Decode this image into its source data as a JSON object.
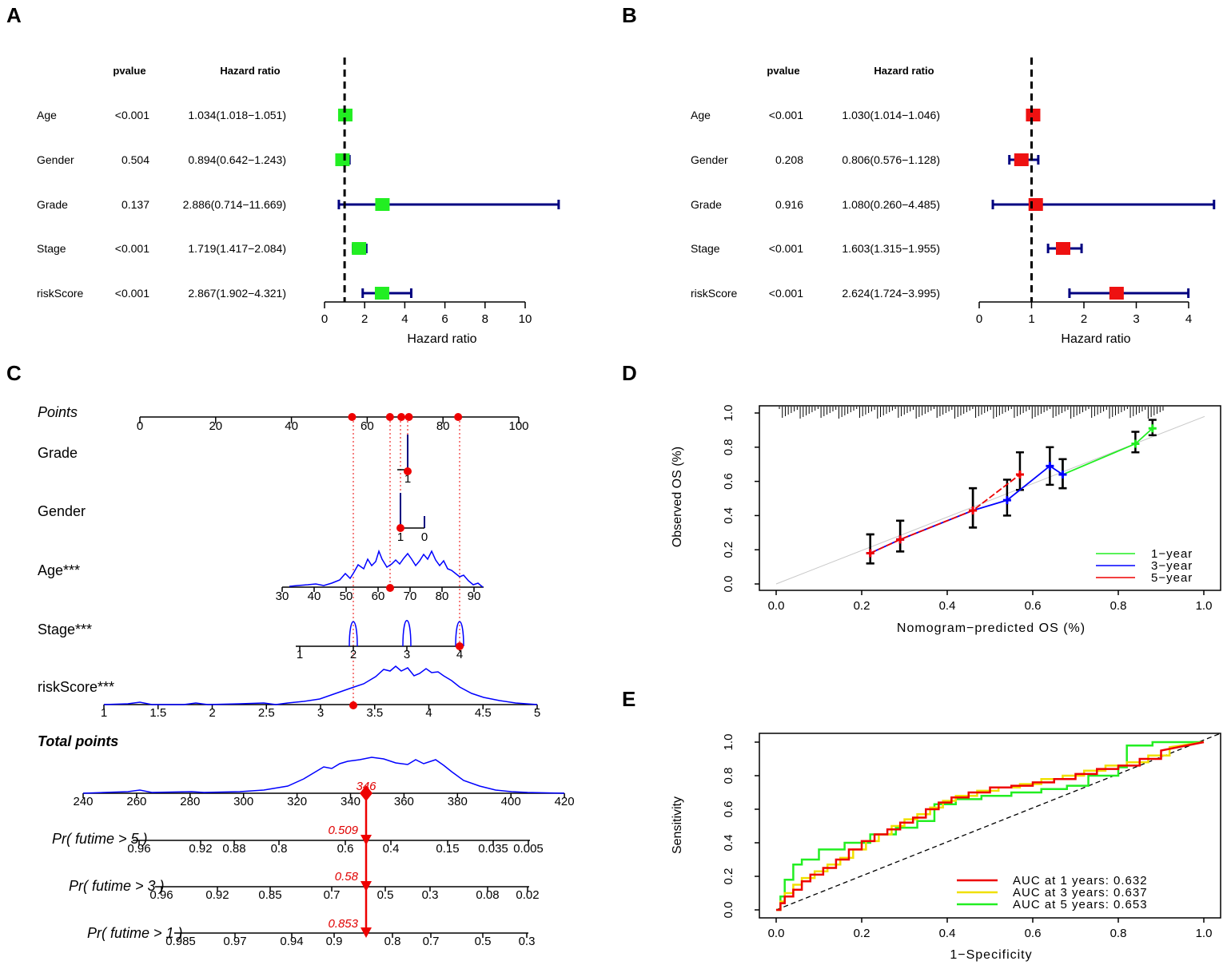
{
  "colors": {
    "green": "#22ee22",
    "red": "#ee1111",
    "navy": "#000080",
    "blue": "#0000ff",
    "nom_red": "#ee0000",
    "yellow": "#f0e000"
  },
  "panel_labels": {
    "a": "A",
    "b": "B",
    "c": "C",
    "d": "D",
    "e": "E"
  },
  "forest_a": {
    "header_pvalue": "pvalue",
    "header_hr": "Hazard ratio",
    "xlabel": "Hazard ratio",
    "rows": [
      {
        "name": "Age",
        "pvalue": "<0.001",
        "hr_text": "1.034(1.018−1.051)",
        "hr": 1.034,
        "lo": 1.018,
        "hi": 1.051
      },
      {
        "name": "Gender",
        "pvalue": "0.504",
        "hr_text": "0.894(0.642−1.243)",
        "hr": 0.894,
        "lo": 0.642,
        "hi": 1.243
      },
      {
        "name": "Grade",
        "pvalue": "0.137",
        "hr_text": "2.886(0.714−11.669)",
        "hr": 2.886,
        "lo": 0.714,
        "hi": 11.669
      },
      {
        "name": "Stage",
        "pvalue": "<0.001",
        "hr_text": "1.719(1.417−2.084)",
        "hr": 1.719,
        "lo": 1.417,
        "hi": 2.084
      },
      {
        "name": "riskScore",
        "pvalue": "<0.001",
        "hr_text": "2.867(1.902−4.321)",
        "hr": 2.867,
        "lo": 1.902,
        "hi": 4.321
      }
    ],
    "ticks": [
      "0",
      "2",
      "4",
      "6",
      "8",
      "10"
    ],
    "xlim": [
      0,
      10
    ]
  },
  "forest_b": {
    "header_pvalue": "pvalue",
    "header_hr": "Hazard ratio",
    "xlabel": "Hazard ratio",
    "rows": [
      {
        "name": "Age",
        "pvalue": "<0.001",
        "hr_text": "1.030(1.014−1.046)",
        "hr": 1.03,
        "lo": 1.014,
        "hi": 1.046
      },
      {
        "name": "Gender",
        "pvalue": "0.208",
        "hr_text": "0.806(0.576−1.128)",
        "hr": 0.806,
        "lo": 0.576,
        "hi": 1.128
      },
      {
        "name": "Grade",
        "pvalue": "0.916",
        "hr_text": "1.080(0.260−4.485)",
        "hr": 1.08,
        "lo": 0.26,
        "hi": 4.485
      },
      {
        "name": "Stage",
        "pvalue": "<0.001",
        "hr_text": "1.603(1.315−1.955)",
        "hr": 1.603,
        "lo": 1.315,
        "hi": 1.955
      },
      {
        "name": "riskScore",
        "pvalue": "<0.001",
        "hr_text": "2.624(1.724−3.995)",
        "hr": 2.624,
        "lo": 1.724,
        "hi": 3.995
      }
    ],
    "ticks": [
      "0",
      "1",
      "2",
      "3",
      "4"
    ],
    "xlim": [
      0,
      4
    ]
  },
  "nomogram": {
    "points_label": "Points",
    "points_ticks": [
      "0",
      "20",
      "40",
      "60",
      "80",
      "100"
    ],
    "grade_label": "Grade",
    "grade_tick": "1",
    "gender_label": "Gender",
    "gender_ticks": [
      "1",
      "0"
    ],
    "age_label": "Age***",
    "age_ticks": [
      "30",
      "40",
      "50",
      "60",
      "70",
      "80",
      "90"
    ],
    "stage_label": "Stage***",
    "stage_ticks": [
      "1",
      "2",
      "3",
      "4"
    ],
    "risk_label": "riskScore***",
    "risk_ticks": [
      "1",
      "1.5",
      "2",
      "2.5",
      "3",
      "3.5",
      "4",
      "4.5",
      "5"
    ],
    "total_label": "Total points",
    "total_ticks": [
      "240",
      "260",
      "280",
      "300",
      "320",
      "340",
      "360",
      "380",
      "400",
      "420"
    ],
    "total_value": "346",
    "pr5_label": "Pr( futime > 5 )",
    "pr5_ticks": [
      "0.96",
      "0.92",
      "0.88",
      "0.8",
      "0.6",
      "0.4",
      "0.15",
      "0.035",
      "0.005"
    ],
    "pr5_value": "0.509",
    "pr3_label": "Pr( futime > 3 )",
    "pr3_ticks": [
      "0.96",
      "0.92",
      "0.85",
      "0.7",
      "0.5",
      "0.3",
      "0.08",
      "0.02"
    ],
    "pr3_value": "0.58",
    "pr1_label": "Pr( futime > 1 )",
    "pr1_ticks": [
      "0.985",
      "0.97",
      "0.94",
      "0.9",
      "0.8",
      "0.7",
      "0.5",
      "0.3"
    ],
    "pr1_value": "0.853",
    "selected_points": [
      56,
      66,
      69,
      71,
      84
    ]
  },
  "chart_data": [
    {
      "type": "calibration",
      "xlabel": "Nomogram−predicted OS (%)",
      "ylabel": "Observed OS (%)",
      "xlim": [
        0,
        1
      ],
      "ylim": [
        0,
        1
      ],
      "x_ticks": [
        "0.0",
        "0.2",
        "0.4",
        "0.6",
        "0.8",
        "1.0"
      ],
      "y_ticks": [
        "0.0",
        "0.2",
        "0.4",
        "0.6",
        "0.8",
        "1.0"
      ],
      "series": [
        {
          "name": "1−year",
          "points": [
            [
              0.67,
              0.64,
              0.56,
              0.73
            ],
            [
              0.84,
              0.82,
              0.77,
              0.89
            ],
            [
              0.88,
              0.91,
              0.87,
              0.96
            ]
          ]
        },
        {
          "name": "3−year",
          "points": [
            [
              0.22,
              0.18,
              0.12,
              0.29
            ],
            [
              0.29,
              0.26,
              0.19,
              0.37
            ],
            [
              0.46,
              0.43,
              0.33,
              0.56
            ],
            [
              0.54,
              0.49,
              0.4,
              0.61
            ],
            [
              0.64,
              0.69,
              0.58,
              0.8
            ],
            [
              0.67,
              0.64,
              0.56,
              0.73
            ]
          ]
        },
        {
          "name": "5−year",
          "points": [
            [
              0.22,
              0.18,
              0.12,
              0.29
            ],
            [
              0.29,
              0.26,
              0.19,
              0.37
            ],
            [
              0.46,
              0.43,
              0.33,
              0.56
            ],
            [
              0.57,
              0.64,
              0.55,
              0.77
            ]
          ]
        }
      ]
    },
    {
      "type": "line",
      "xlabel": "1−Specificity",
      "ylabel": "Sensitivity",
      "xlim": [
        0,
        1
      ],
      "ylim": [
        0,
        1
      ],
      "x_ticks": [
        "0.0",
        "0.2",
        "0.4",
        "0.6",
        "0.8",
        "1.0"
      ],
      "y_ticks": [
        "0.0",
        "0.2",
        "0.4",
        "0.6",
        "0.8",
        "1.0"
      ],
      "series": [
        {
          "name": "AUC at 1 years: 0.632",
          "x": [
            0,
            0.01,
            0.01,
            0.02,
            0.02,
            0.04,
            0.04,
            0.06,
            0.06,
            0.08,
            0.08,
            0.11,
            0.11,
            0.14,
            0.14,
            0.17,
            0.17,
            0.2,
            0.2,
            0.23,
            0.23,
            0.26,
            0.26,
            0.29,
            0.29,
            0.32,
            0.32,
            0.35,
            0.35,
            0.38,
            0.38,
            0.41,
            0.41,
            0.45,
            0.45,
            0.5,
            0.5,
            0.55,
            0.55,
            0.6,
            0.6,
            0.65,
            0.65,
            0.7,
            0.7,
            0.75,
            0.75,
            0.8,
            0.8,
            0.85,
            0.85,
            0.9,
            0.9,
            1
          ],
          "y": [
            0,
            0,
            0.04,
            0.04,
            0.08,
            0.08,
            0.12,
            0.12,
            0.17,
            0.17,
            0.21,
            0.21,
            0.25,
            0.25,
            0.3,
            0.3,
            0.36,
            0.36,
            0.41,
            0.41,
            0.45,
            0.45,
            0.48,
            0.48,
            0.52,
            0.52,
            0.55,
            0.55,
            0.6,
            0.6,
            0.64,
            0.64,
            0.67,
            0.67,
            0.7,
            0.7,
            0.73,
            0.73,
            0.74,
            0.74,
            0.76,
            0.76,
            0.78,
            0.78,
            0.81,
            0.81,
            0.84,
            0.84,
            0.86,
            0.86,
            0.9,
            0.9,
            0.95,
            1
          ]
        },
        {
          "name": "AUC at 3 years: 0.637",
          "x": [
            0,
            0.01,
            0.01,
            0.02,
            0.02,
            0.04,
            0.04,
            0.06,
            0.06,
            0.09,
            0.09,
            0.12,
            0.12,
            0.15,
            0.15,
            0.18,
            0.18,
            0.21,
            0.21,
            0.24,
            0.24,
            0.27,
            0.27,
            0.3,
            0.3,
            0.33,
            0.33,
            0.36,
            0.36,
            0.39,
            0.39,
            0.42,
            0.42,
            0.47,
            0.47,
            0.52,
            0.52,
            0.57,
            0.57,
            0.62,
            0.62,
            0.67,
            0.67,
            0.72,
            0.72,
            0.77,
            0.77,
            0.82,
            0.82,
            0.87,
            0.87,
            0.92,
            0.92,
            1
          ],
          "y": [
            0,
            0,
            0.05,
            0.05,
            0.1,
            0.1,
            0.15,
            0.15,
            0.19,
            0.19,
            0.23,
            0.23,
            0.27,
            0.27,
            0.31,
            0.31,
            0.36,
            0.36,
            0.41,
            0.41,
            0.45,
            0.45,
            0.5,
            0.5,
            0.54,
            0.54,
            0.57,
            0.57,
            0.61,
            0.61,
            0.65,
            0.65,
            0.68,
            0.68,
            0.71,
            0.71,
            0.73,
            0.73,
            0.75,
            0.75,
            0.78,
            0.78,
            0.8,
            0.8,
            0.83,
            0.83,
            0.86,
            0.86,
            0.88,
            0.88,
            0.92,
            0.92,
            0.97,
            1
          ]
        },
        {
          "name": "AUC at 5 years: 0.653",
          "x": [
            0,
            0.01,
            0.01,
            0.02,
            0.02,
            0.04,
            0.04,
            0.06,
            0.06,
            0.1,
            0.1,
            0.16,
            0.16,
            0.22,
            0.22,
            0.28,
            0.28,
            0.33,
            0.33,
            0.37,
            0.37,
            0.42,
            0.42,
            0.48,
            0.48,
            0.55,
            0.55,
            0.62,
            0.62,
            0.68,
            0.68,
            0.73,
            0.73,
            0.8,
            0.8,
            0.82,
            0.82,
            0.88,
            0.88,
            1
          ],
          "y": [
            0,
            0,
            0.08,
            0.08,
            0.18,
            0.18,
            0.27,
            0.27,
            0.3,
            0.3,
            0.36,
            0.36,
            0.4,
            0.4,
            0.45,
            0.45,
            0.49,
            0.49,
            0.53,
            0.53,
            0.63,
            0.63,
            0.66,
            0.66,
            0.68,
            0.68,
            0.7,
            0.7,
            0.72,
            0.72,
            0.74,
            0.74,
            0.8,
            0.8,
            0.85,
            0.85,
            0.98,
            0.98,
            1,
            1
          ]
        }
      ]
    }
  ]
}
